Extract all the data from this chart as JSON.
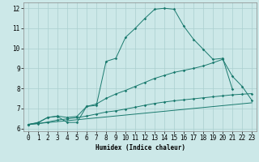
{
  "xlabel": "Humidex (Indice chaleur)",
  "bg_color": "#cce8e8",
  "grid_color": "#aacfcf",
  "line_color": "#1a7a6e",
  "xlim": [
    -0.5,
    23.5
  ],
  "ylim": [
    5.85,
    12.3
  ],
  "yticks": [
    6,
    7,
    8,
    9,
    10,
    11,
    12
  ],
  "xticks": [
    0,
    1,
    2,
    3,
    4,
    5,
    6,
    7,
    8,
    9,
    10,
    11,
    12,
    13,
    14,
    15,
    16,
    17,
    18,
    19,
    20,
    21,
    22,
    23
  ],
  "line1_x": [
    0,
    1,
    2,
    3,
    4,
    5,
    6,
    7,
    8,
    9,
    10,
    11,
    12,
    13,
    14,
    15,
    16,
    17,
    18,
    19,
    20,
    21
  ],
  "line1_y": [
    6.2,
    6.3,
    6.55,
    6.6,
    6.3,
    6.3,
    7.1,
    7.15,
    9.35,
    9.5,
    10.55,
    11.0,
    11.5,
    11.95,
    12.0,
    11.95,
    11.1,
    10.45,
    9.95,
    9.45,
    9.5,
    7.95
  ],
  "line2_x": [
    0,
    1,
    2,
    3,
    4,
    5,
    6,
    7,
    8,
    9,
    10,
    11,
    12,
    13,
    14,
    15,
    16,
    17,
    18,
    19,
    20,
    21,
    22,
    23
  ],
  "line2_y": [
    6.2,
    6.28,
    6.55,
    6.62,
    6.55,
    6.6,
    7.1,
    7.22,
    7.5,
    7.72,
    7.9,
    8.1,
    8.3,
    8.5,
    8.65,
    8.8,
    8.9,
    9.0,
    9.12,
    9.28,
    9.45,
    8.6,
    8.1,
    7.4
  ],
  "line3_x": [
    0,
    1,
    2,
    3,
    4,
    5,
    6,
    7,
    8,
    9,
    10,
    11,
    12,
    13,
    14,
    15,
    16,
    17,
    18,
    19,
    20,
    21,
    22,
    23
  ],
  "line3_y": [
    6.2,
    6.24,
    6.32,
    6.42,
    6.48,
    6.54,
    6.62,
    6.72,
    6.82,
    6.88,
    6.97,
    7.06,
    7.16,
    7.25,
    7.32,
    7.38,
    7.43,
    7.48,
    7.53,
    7.58,
    7.63,
    7.68,
    7.71,
    7.74
  ],
  "line4_x": [
    0,
    23
  ],
  "line4_y": [
    6.2,
    7.28
  ]
}
